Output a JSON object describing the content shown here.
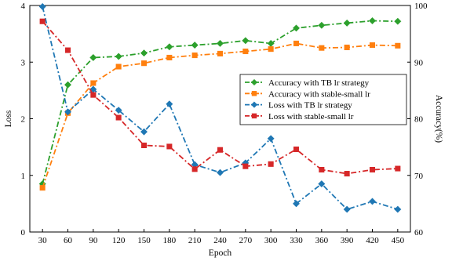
{
  "chart_data": {
    "type": "line",
    "xlabel": "Epoch",
    "ylabel_left": "Loss",
    "ylabel_right": "Accuracy(%)",
    "x": [
      30,
      60,
      90,
      120,
      150,
      180,
      210,
      240,
      270,
      300,
      330,
      360,
      390,
      420,
      450
    ],
    "x_ticks": [
      "30",
      "60",
      "90",
      "120",
      "150",
      "180",
      "210",
      "240",
      "270",
      "300",
      "330",
      "360",
      "390",
      "420",
      "450"
    ],
    "ylim_left": [
      0,
      4
    ],
    "yticks_left": [
      "0",
      "1",
      "2",
      "3",
      "4"
    ],
    "ylim_right": [
      60,
      100
    ],
    "yticks_right": [
      "60",
      "70",
      "80",
      "90",
      "100"
    ],
    "legend_position": "center-right",
    "series": [
      {
        "name": "Accuracy with TB lr strategy",
        "axis": "right",
        "color": "#2ca02c",
        "marker": "diamond",
        "values": [
          68.5,
          86.0,
          90.8,
          91.0,
          91.6,
          92.7,
          93.0,
          93.3,
          93.8,
          93.3,
          96.0,
          96.5,
          96.9,
          97.3,
          97.2
        ]
      },
      {
        "name": "Accuracy with stable-small lr",
        "axis": "right",
        "color": "#ff7f0e",
        "marker": "square",
        "values": [
          67.8,
          81.0,
          86.3,
          89.2,
          89.8,
          90.8,
          91.2,
          91.5,
          91.9,
          92.3,
          93.3,
          92.5,
          92.6,
          93.0,
          92.9
        ]
      },
      {
        "name": "Loss with TB lr strategy",
        "axis": "left",
        "color": "#1f77b4",
        "marker": "diamond",
        "values": [
          3.98,
          2.12,
          2.52,
          2.15,
          1.77,
          2.26,
          1.19,
          1.05,
          1.22,
          1.65,
          0.5,
          0.85,
          0.4,
          0.54,
          0.4
        ]
      },
      {
        "name": "Loss with stable-small lr",
        "axis": "left",
        "color": "#d62728",
        "marker": "square",
        "values": [
          3.72,
          3.21,
          2.42,
          2.02,
          1.53,
          1.51,
          1.11,
          1.45,
          1.16,
          1.2,
          1.46,
          1.1,
          1.03,
          1.1,
          1.12
        ]
      }
    ]
  }
}
